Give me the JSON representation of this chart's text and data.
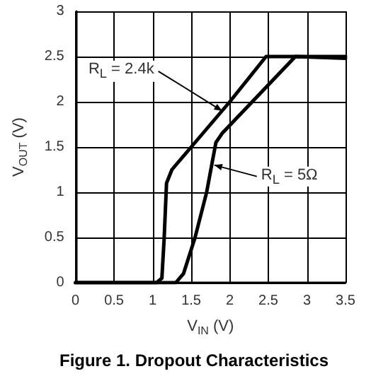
{
  "chart_data": {
    "type": "line",
    "title": "Figure 1. Dropout Characteristics",
    "xlabel": "V$_{IN}$ (V)",
    "ylabel": "V$_{OUT}$ (V)",
    "series": [
      {
        "color": "#000000",
        "x": [
          0,
          1.05,
          1.12,
          1.15,
          1.18,
          1.25,
          1.5,
          2.0,
          2.47,
          3.5
        ],
        "values": [
          0,
          0,
          0.05,
          0.5,
          1.1,
          1.25,
          1.5,
          2.0,
          2.5,
          2.5
        ]
      },
      {
        "color": "#000000",
        "x": [
          0,
          1.3,
          1.4,
          1.55,
          1.7,
          1.82,
          1.9,
          2.85,
          3.5
        ],
        "values": [
          0,
          0,
          0.1,
          0.5,
          1.0,
          1.55,
          1.65,
          2.5,
          2.48
        ]
      }
    ],
    "annotations": [
      {
        "text": "R$_{L}$ = 2.4k",
        "x": 1.9,
        "y": 1.9
      },
      {
        "text": "R$_{L}$ = 5Ω",
        "x": 1.8,
        "y": 1.3
      }
    ],
    "xlim": [
      0,
      3.5
    ],
    "xticks": [
      0,
      0.5,
      1,
      1.5,
      2,
      2.5,
      3,
      3.5
    ],
    "ylim": [
      0,
      3
    ],
    "yticks": [
      0,
      0.5,
      1,
      1.5,
      2,
      2.5,
      3
    ],
    "grid": true,
    "marker": "none",
    "line_style": "solid"
  }
}
